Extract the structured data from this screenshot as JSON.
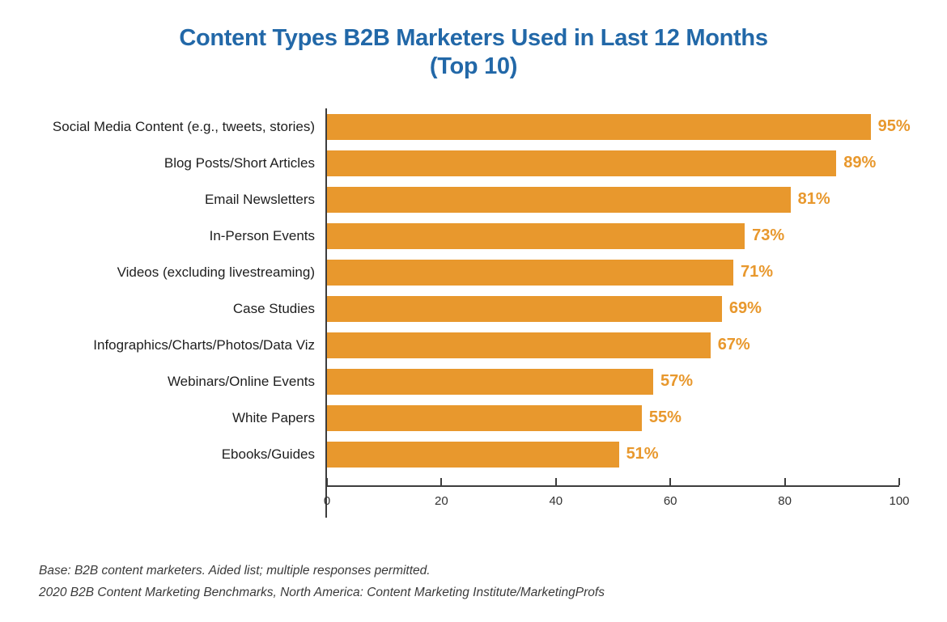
{
  "title": {
    "line1": "Content Types B2B Marketers Used in Last 12 Months",
    "line2": "(Top 10)"
  },
  "chart_data": {
    "type": "bar",
    "orientation": "horizontal",
    "title": "Content Types B2B Marketers Used in Last 12 Months (Top 10)",
    "categories": [
      "Social Media Content (e.g., tweets, stories)",
      "Blog Posts/Short Articles",
      "Email Newsletters",
      "In-Person Events",
      "Videos (excluding livestreaming)",
      "Case Studies",
      "Infographics/Charts/Photos/Data Viz",
      "Webinars/Online Events",
      "White Papers",
      "Ebooks/Guides"
    ],
    "values": [
      95,
      89,
      81,
      73,
      71,
      69,
      67,
      57,
      55,
      51
    ],
    "value_labels": [
      "95%",
      "89%",
      "81%",
      "73%",
      "71%",
      "69%",
      "67%",
      "57%",
      "55%",
      "51%"
    ],
    "xlabel": "",
    "ylabel": "",
    "xlim": [
      0,
      100
    ],
    "x_ticks": [
      0,
      20,
      40,
      60,
      80,
      100
    ],
    "grid": false,
    "legend": false,
    "colors": {
      "bar": "#E8982D",
      "value_label": "#E8982D",
      "title": "#2268A8",
      "axis": "#3d3d3d",
      "category_label": "#1e1e1e",
      "footer_text": "#3a3a3a"
    }
  },
  "footer": {
    "line1": "Base: B2B content marketers. Aided list; multiple responses permitted.",
    "line2": "2020 B2B Content Marketing Benchmarks, North America: Content Marketing Institute/MarketingProfs"
  }
}
